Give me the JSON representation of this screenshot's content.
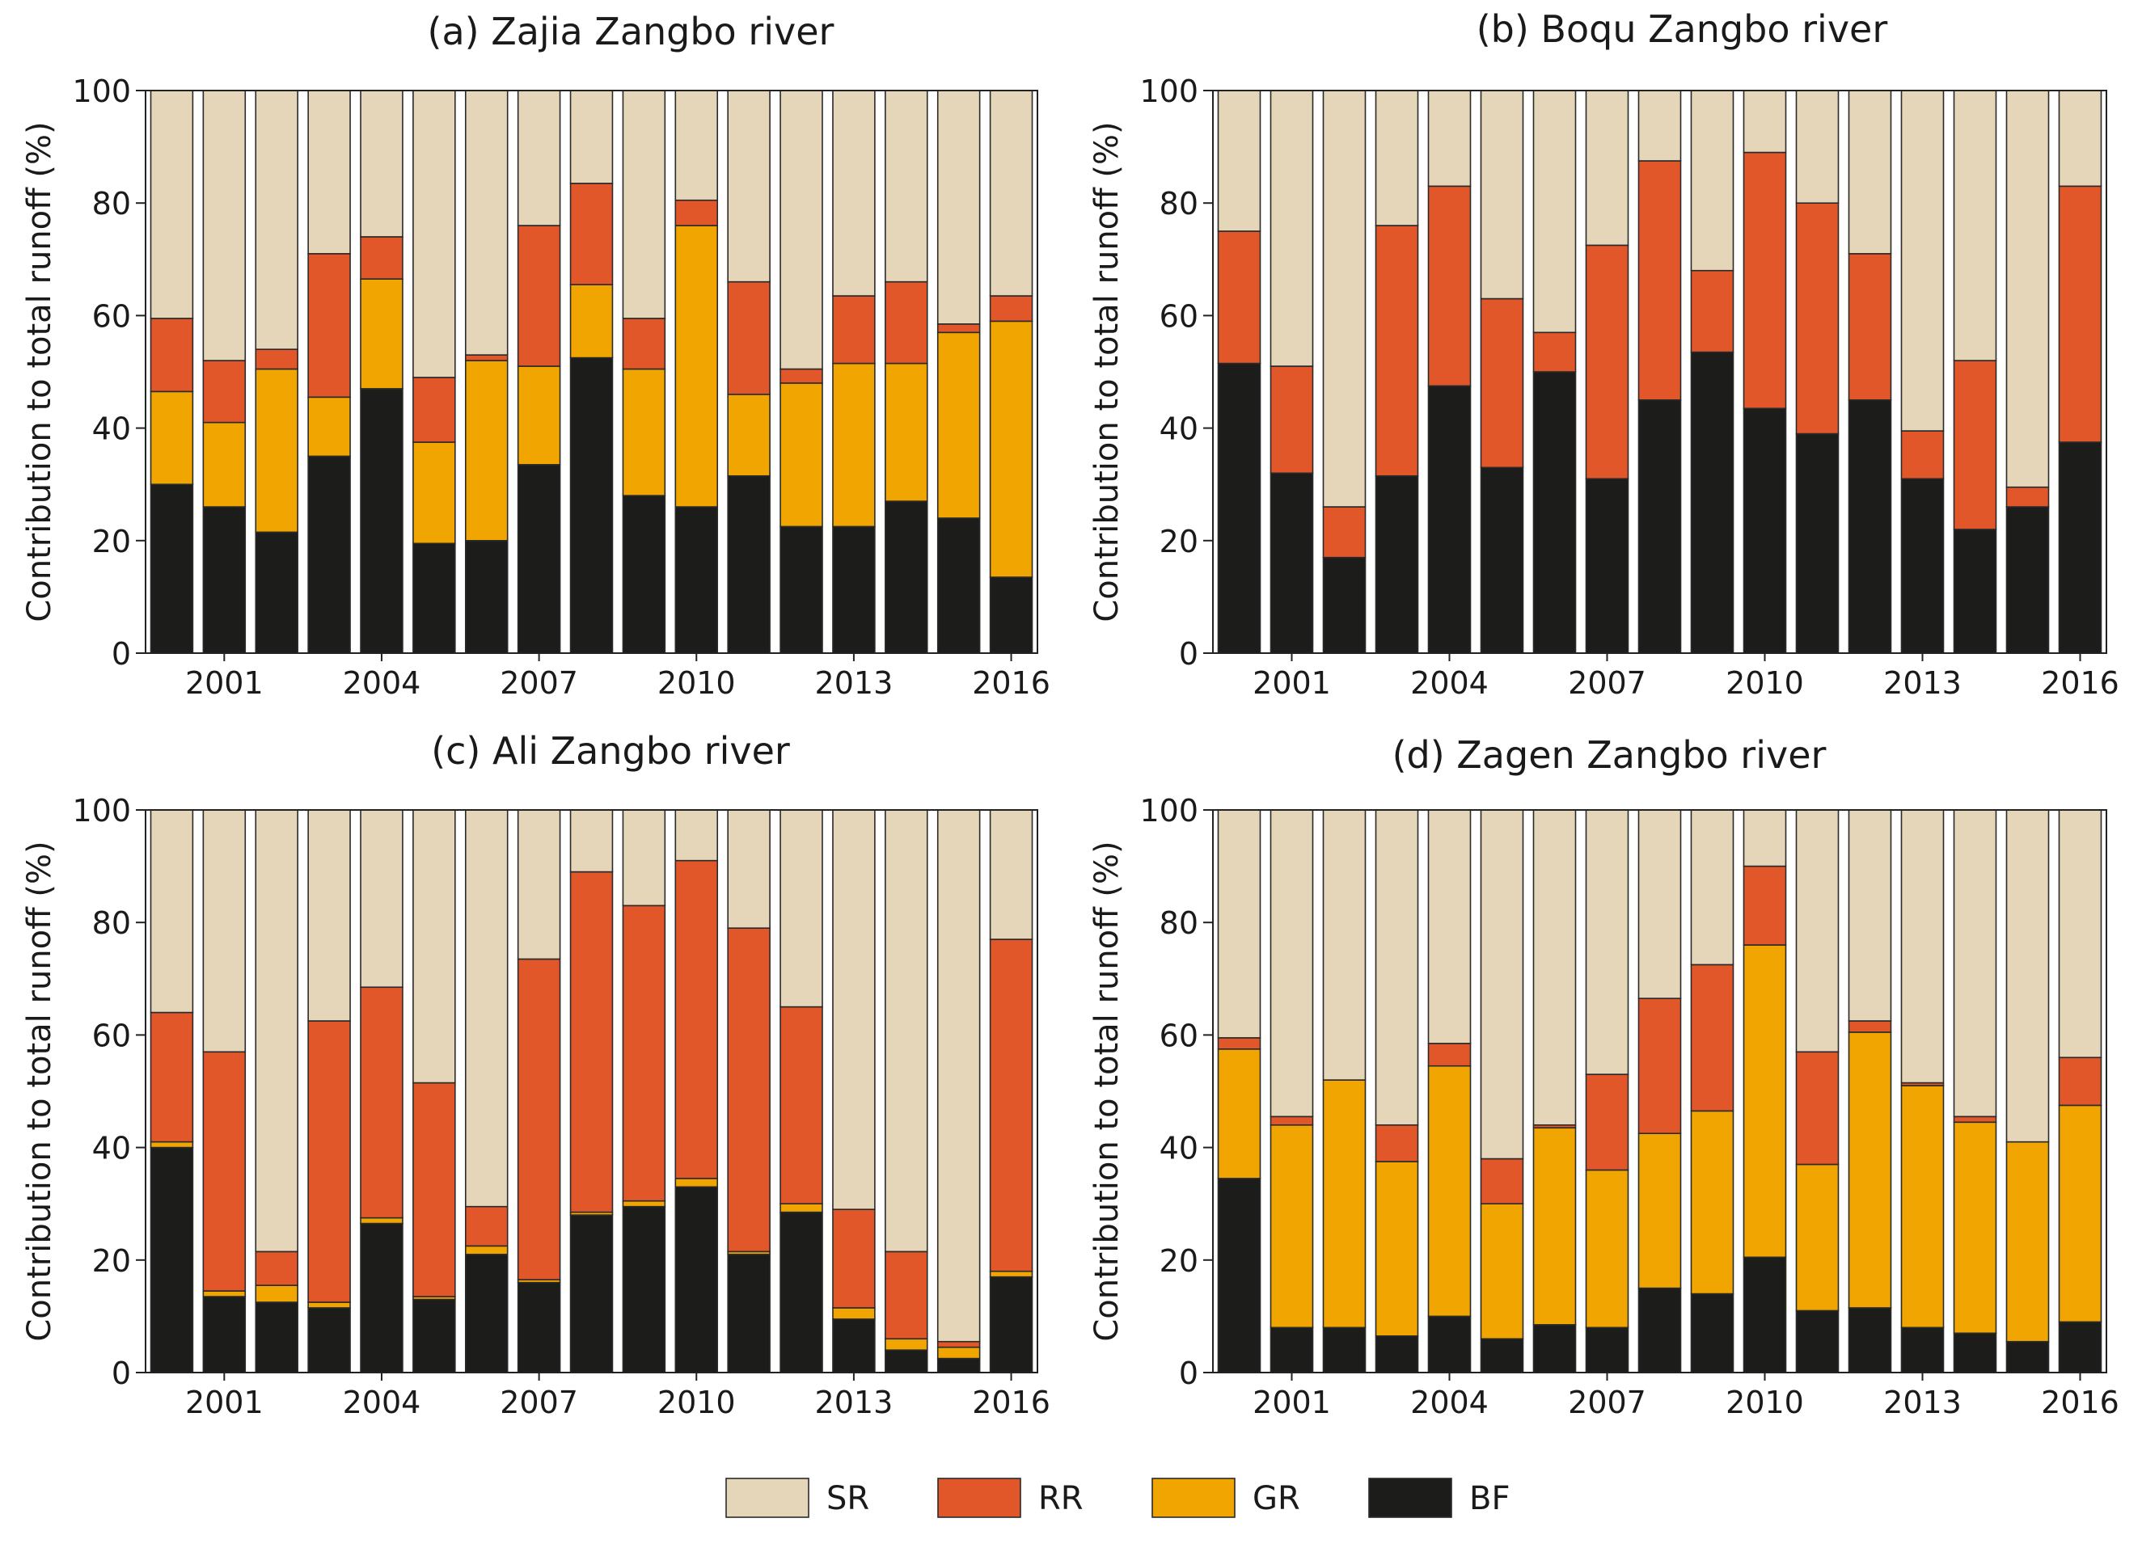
{
  "figure": {
    "y_axis_label": "Contribution to total runoff  (%)",
    "legend": [
      {
        "key": "SR",
        "label": "SR",
        "color": "#e5d6ba"
      },
      {
        "key": "RR",
        "label": "RR",
        "color": "#e2572a"
      },
      {
        "key": "GR",
        "label": "GR",
        "color": "#f0a500"
      },
      {
        "key": "BF",
        "label": "BF",
        "color": "#1c1c1a"
      }
    ]
  },
  "chart_data": [
    {
      "type": "bar",
      "stacked": true,
      "title": "(a)   Zajia Zangbo river",
      "xlabel": "",
      "ylabel": "Contribution to total runoff  (%)",
      "ylim": [
        0,
        100
      ],
      "yticks": [
        0,
        20,
        40,
        60,
        80,
        100
      ],
      "xtick_labels": [
        "2001",
        "2004",
        "2007",
        "2010",
        "2013",
        "2016"
      ],
      "categories": [
        2000,
        2001,
        2002,
        2003,
        2004,
        2005,
        2006,
        2007,
        2008,
        2009,
        2010,
        2011,
        2012,
        2013,
        2014,
        2015,
        2016
      ],
      "series": [
        {
          "name": "BF",
          "values": [
            30,
            26,
            21.5,
            35,
            47,
            19.5,
            20,
            33.5,
            52.5,
            28,
            26,
            31.5,
            22.5,
            22.5,
            27,
            24,
            13.5
          ]
        },
        {
          "name": "GR",
          "values": [
            16.5,
            15,
            29,
            10.5,
            19.5,
            18,
            32,
            17.5,
            13,
            22.5,
            50,
            14.5,
            25.5,
            29,
            24.5,
            33,
            45.5
          ]
        },
        {
          "name": "RR",
          "values": [
            13,
            11,
            3.5,
            25.5,
            7.5,
            11.5,
            1,
            25,
            18,
            9,
            4.5,
            20,
            2.5,
            12,
            14.5,
            1.5,
            4.5
          ]
        },
        {
          "name": "SR",
          "values": [
            40.5,
            48,
            46,
            29,
            26,
            51,
            47,
            24,
            16.5,
            40.5,
            19.5,
            34,
            49.5,
            36.5,
            34,
            41.5,
            36.5
          ]
        }
      ]
    },
    {
      "type": "bar",
      "stacked": true,
      "title": "(b)   Boqu Zangbo river",
      "xlabel": "",
      "ylabel": "Contribution to total runoff  (%)",
      "ylim": [
        0,
        100
      ],
      "yticks": [
        0,
        20,
        40,
        60,
        80,
        100
      ],
      "xtick_labels": [
        "2001",
        "2004",
        "2007",
        "2010",
        "2013",
        "2016"
      ],
      "categories": [
        2000,
        2001,
        2002,
        2003,
        2004,
        2005,
        2006,
        2007,
        2008,
        2009,
        2010,
        2011,
        2012,
        2013,
        2014,
        2015,
        2016
      ],
      "series": [
        {
          "name": "BF",
          "values": [
            51.5,
            32,
            17,
            31.5,
            47.5,
            33,
            50,
            31,
            45,
            53.5,
            43.5,
            39,
            45,
            31,
            22,
            26,
            37.5
          ]
        },
        {
          "name": "GR",
          "values": [
            0,
            0,
            0,
            0,
            0,
            0,
            0,
            0,
            0,
            0,
            0,
            0,
            0,
            0,
            0,
            0,
            0
          ]
        },
        {
          "name": "RR",
          "values": [
            23.5,
            19,
            9,
            44.5,
            35.5,
            30,
            7,
            41.5,
            42.5,
            14.5,
            45.5,
            41,
            26,
            8.5,
            30,
            3.5,
            45.5
          ]
        },
        {
          "name": "SR",
          "values": [
            25,
            49,
            74,
            24,
            17,
            37,
            43,
            27.5,
            12.5,
            32,
            11,
            20,
            29,
            60.5,
            48,
            70.5,
            17
          ]
        }
      ]
    },
    {
      "type": "bar",
      "stacked": true,
      "title": "(c)   Ali Zangbo river",
      "xlabel": "",
      "ylabel": "Contribution to total runoff  (%)",
      "ylim": [
        0,
        100
      ],
      "yticks": [
        0,
        20,
        40,
        60,
        80,
        100
      ],
      "xtick_labels": [
        "2001",
        "2004",
        "2007",
        "2010",
        "2013",
        "2016"
      ],
      "categories": [
        2000,
        2001,
        2002,
        2003,
        2004,
        2005,
        2006,
        2007,
        2008,
        2009,
        2010,
        2011,
        2012,
        2013,
        2014,
        2015,
        2016
      ],
      "series": [
        {
          "name": "BF",
          "values": [
            40,
            13.5,
            12.5,
            11.5,
            26.5,
            13,
            21,
            16,
            28,
            29.5,
            33,
            21,
            28.5,
            9.5,
            4,
            2.5,
            17
          ]
        },
        {
          "name": "GR",
          "values": [
            1,
            1,
            3,
            1,
            1,
            0.5,
            1.5,
            0.5,
            0.5,
            1,
            1.5,
            0.5,
            1.5,
            2,
            2,
            2,
            1
          ]
        },
        {
          "name": "RR",
          "values": [
            23,
            42.5,
            6,
            50,
            41,
            38,
            7,
            57,
            60.5,
            52.5,
            56.5,
            57.5,
            35,
            17.5,
            15.5,
            1,
            59
          ]
        },
        {
          "name": "SR",
          "values": [
            36,
            43,
            78.5,
            37.5,
            31.5,
            48.5,
            70.5,
            26.5,
            11,
            17,
            9,
            21,
            35,
            71,
            78.5,
            94.5,
            23
          ]
        }
      ]
    },
    {
      "type": "bar",
      "stacked": true,
      "title": "(d)   Zagen Zangbo river",
      "xlabel": "",
      "ylabel": "Contribution to total runoff  (%)",
      "ylim": [
        0,
        100
      ],
      "yticks": [
        0,
        20,
        40,
        60,
        80,
        100
      ],
      "xtick_labels": [
        "2001",
        "2004",
        "2007",
        "2010",
        "2013",
        "2016"
      ],
      "categories": [
        2000,
        2001,
        2002,
        2003,
        2004,
        2005,
        2006,
        2007,
        2008,
        2009,
        2010,
        2011,
        2012,
        2013,
        2014,
        2015,
        2016
      ],
      "series": [
        {
          "name": "BF",
          "values": [
            34.5,
            8,
            8,
            6.5,
            10,
            6,
            8.5,
            8,
            15,
            14,
            20.5,
            11,
            11.5,
            8,
            7,
            5.5,
            9
          ]
        },
        {
          "name": "GR",
          "values": [
            23,
            36,
            44,
            31,
            44.5,
            24,
            35,
            28,
            27.5,
            32.5,
            55.5,
            26,
            49,
            43,
            37.5,
            35.5,
            38.5
          ]
        },
        {
          "name": "RR",
          "values": [
            2,
            1.5,
            0,
            6.5,
            4,
            8,
            0.5,
            17,
            24,
            26,
            14,
            20,
            2,
            0.5,
            1,
            0,
            8.5
          ]
        },
        {
          "name": "SR",
          "values": [
            40.5,
            54.5,
            48,
            56,
            41.5,
            62,
            56,
            47,
            33.5,
            27.5,
            10,
            43,
            37.5,
            48.5,
            54.5,
            59,
            44
          ]
        }
      ]
    }
  ]
}
